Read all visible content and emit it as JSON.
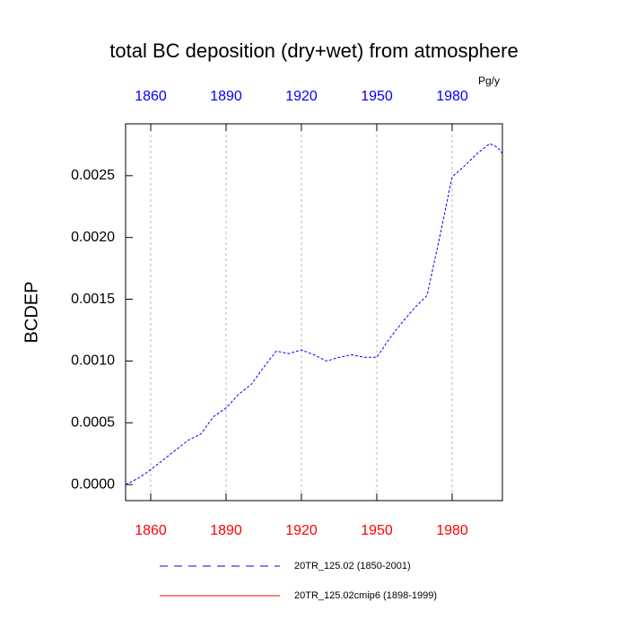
{
  "chart_data": {
    "type": "line",
    "title": "total BC deposition (dry+wet) from atmosphere",
    "units": "Pg/y",
    "y_label": "BCDEP",
    "xlim": [
      1850,
      2000
    ],
    "xticks": [
      1860,
      1890,
      1920,
      1950,
      1980
    ],
    "ylim": [
      -0.00013,
      0.00292
    ],
    "yticks": [
      {
        "value": 0,
        "label": "0.0000"
      },
      {
        "value": 0.0005,
        "label": "0.0005"
      },
      {
        "value": 0.001,
        "label": "0.0010"
      },
      {
        "value": 0.0015,
        "label": "0.0015"
      },
      {
        "value": 0.002,
        "label": "0.0020"
      },
      {
        "value": 0.0025,
        "label": "0.0025"
      }
    ],
    "grid": true,
    "top_tick_color": "#0000ff",
    "bottom_tick_color": "#ff0000",
    "series": [
      {
        "name": "20TR_125.02 (1850-2001)",
        "color": "#0000ff",
        "dashed": true,
        "x": [
          1850,
          1855,
          1860,
          1865,
          1870,
          1875,
          1880,
          1885,
          1890,
          1895,
          1900,
          1905,
          1910,
          1915,
          1920,
          1925,
          1930,
          1935,
          1940,
          1945,
          1950,
          1955,
          1960,
          1965,
          1970,
          1975,
          1980,
          1985,
          1990,
          1995,
          1998,
          2000
        ],
        "values": [
          0,
          5e-05,
          0.00012,
          0.0002,
          0.00028,
          0.00036,
          0.00041,
          0.00055,
          0.00062,
          0.00073,
          0.00081,
          0.00095,
          0.00108,
          0.00106,
          0.00109,
          0.00105,
          0.001,
          0.00103,
          0.00105,
          0.00103,
          0.00103,
          0.00118,
          0.00131,
          0.00143,
          0.00153,
          0.002,
          0.00249,
          0.00258,
          0.00268,
          0.00276,
          0.00273,
          0.00268
        ]
      },
      {
        "name": "20TR_125.02cmip6 (1898-1999)",
        "color": "#ff0000",
        "dashed": false,
        "x": [],
        "values": []
      }
    ]
  }
}
